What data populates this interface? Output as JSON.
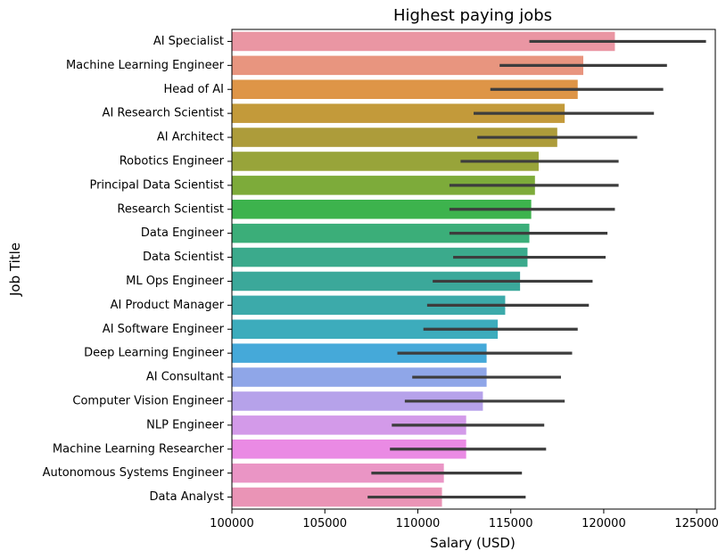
{
  "chart_data": {
    "type": "bar",
    "orientation": "horizontal",
    "title": "Highest paying jobs",
    "xlabel": "Salary (USD)",
    "ylabel": "Job Title",
    "xlim": [
      100000,
      126000
    ],
    "xticks": [
      100000,
      105000,
      110000,
      115000,
      120000,
      125000
    ],
    "grid": false,
    "categories": [
      "AI Specialist",
      "Machine Learning Engineer",
      "Head of AI",
      "AI Research Scientist",
      "AI Architect",
      "Robotics Engineer",
      "Principal Data Scientist",
      "Research Scientist",
      "Data Engineer",
      "Data Scientist",
      "ML Ops Engineer",
      "AI Product Manager",
      "AI Software Engineer",
      "Deep Learning Engineer",
      "AI Consultant",
      "Computer Vision Engineer",
      "NLP Engineer",
      "Machine Learning Researcher",
      "Autonomous Systems Engineer",
      "Data Analyst"
    ],
    "values": [
      120600,
      118900,
      118600,
      117900,
      117500,
      116500,
      116300,
      116100,
      116000,
      115900,
      115500,
      114700,
      114300,
      113700,
      113700,
      113500,
      112600,
      112600,
      111400,
      111300
    ],
    "ci_low": [
      116000,
      114400,
      113900,
      113000,
      113200,
      112300,
      111700,
      111700,
      111700,
      111900,
      110800,
      110500,
      110300,
      108900,
      109700,
      109300,
      108600,
      108500,
      107500,
      107300
    ],
    "ci_high": [
      125500,
      123400,
      123200,
      122700,
      121800,
      120800,
      120800,
      120600,
      120200,
      120100,
      119400,
      119200,
      118600,
      118300,
      117700,
      117900,
      116800,
      116900,
      115600,
      115800
    ],
    "colors": [
      "#ea96a3",
      "#e8957f",
      "#de9547",
      "#c39a3a",
      "#ad9c3a",
      "#98a43a",
      "#7dab3a",
      "#3db34d",
      "#3bae79",
      "#3baa8c",
      "#3ba89a",
      "#3caaaa",
      "#3dacbc",
      "#45a9d9",
      "#8fa6e8",
      "#b6a2ea",
      "#d39ae9",
      "#ea8ae4",
      "#ea95c5",
      "#ea94b6"
    ]
  }
}
